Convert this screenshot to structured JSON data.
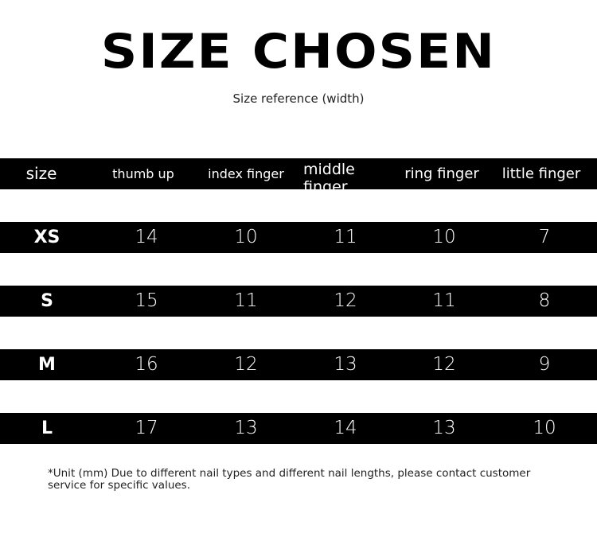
{
  "title": "SIZE CHOSEN",
  "subtitle": "Size reference (width)",
  "table": {
    "headers": [
      "size",
      "thumb up",
      "index finger",
      "middle finger",
      "ring finger",
      "little finger"
    ],
    "rows": [
      [
        "XS",
        "14",
        "10",
        "11",
        "10",
        "7"
      ],
      [
        "S",
        "15",
        "11",
        "12",
        "11",
        "8"
      ],
      [
        "M",
        "16",
        "12",
        "13",
        "12",
        "9"
      ],
      [
        "L",
        "17",
        "13",
        "14",
        "13",
        "10"
      ]
    ]
  },
  "note": "*Unit (mm) Due to different nail types and different nail lengths, please contact customer service for specific values."
}
